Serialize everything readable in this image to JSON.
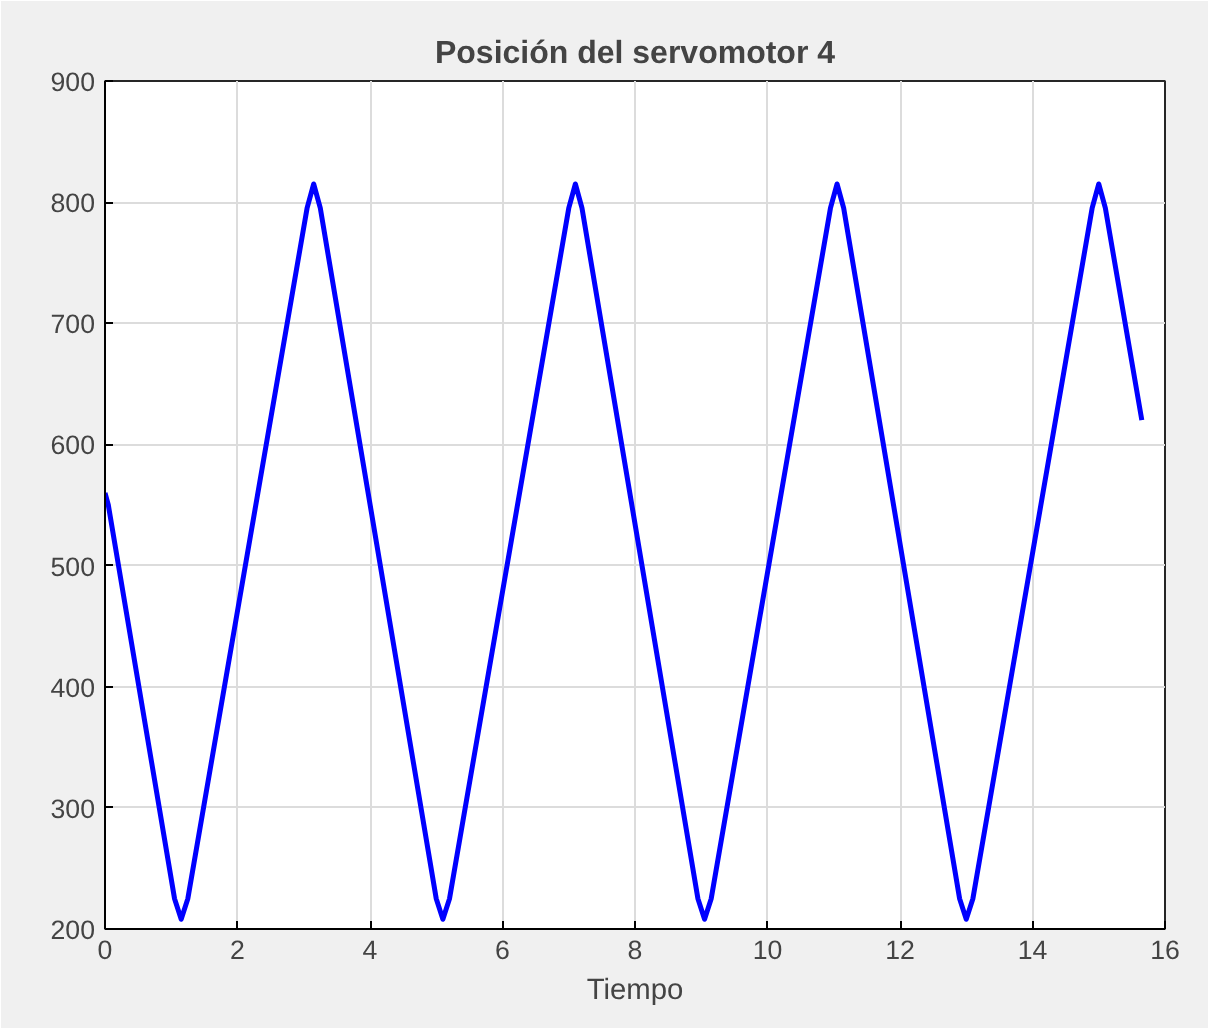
{
  "chart_data": {
    "type": "line",
    "title": "Posición del servomotor 4",
    "xlabel": "Tiempo",
    "x": [
      0,
      0.05,
      1.05,
      1.15,
      1.25,
      3.05,
      3.15,
      3.25,
      5.0,
      5.1,
      5.2,
      7.0,
      7.1,
      7.2,
      8.95,
      9.05,
      9.15,
      10.95,
      11.05,
      11.15,
      12.9,
      13.0,
      13.1,
      14.9,
      15.0,
      15.1,
      15.65
    ],
    "series": [
      {
        "color": "#0000ff",
        "values": [
          560,
          550,
          225,
          208,
          225,
          795,
          815,
          795,
          225,
          208,
          225,
          795,
          815,
          795,
          225,
          208,
          225,
          795,
          815,
          795,
          225,
          208,
          225,
          795,
          815,
          795,
          620
        ]
      }
    ],
    "xlim": [
      0,
      16
    ],
    "xticks": [
      0,
      2,
      4,
      6,
      8,
      10,
      12,
      14,
      16
    ],
    "ylim": [
      200,
      900
    ],
    "yticks": [
      200,
      300,
      400,
      500,
      600,
      700,
      800,
      900
    ],
    "grid": true,
    "line_style": "solid",
    "marker": "none"
  }
}
